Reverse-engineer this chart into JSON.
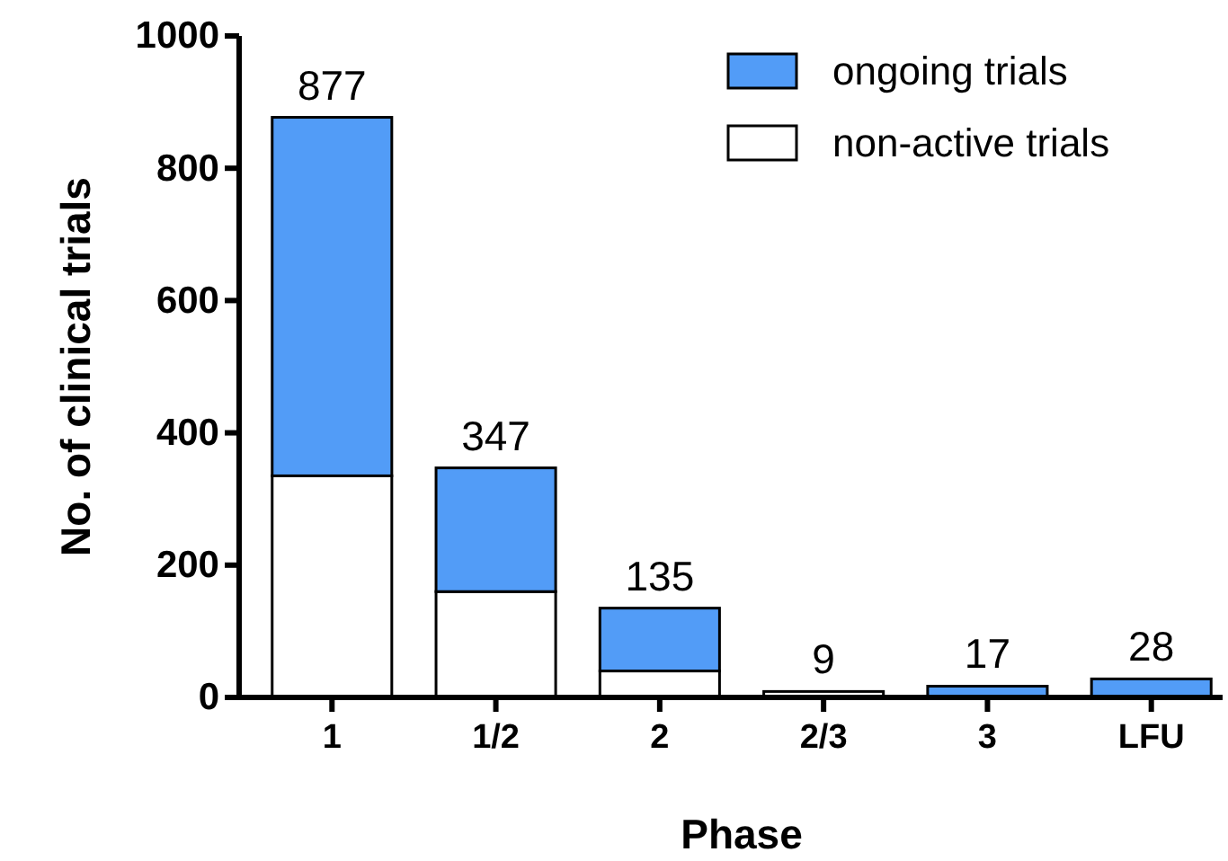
{
  "chart_data": {
    "type": "bar",
    "stacked": true,
    "xlabel": "Phase",
    "ylabel": "No. of clinical trials",
    "categories": [
      "1",
      "1/2",
      "2",
      "2/3",
      "3",
      "LFU"
    ],
    "series": [
      {
        "name": "non-active trials",
        "color": "#ffffff",
        "values": [
          335,
          160,
          40,
          9,
          0,
          0
        ]
      },
      {
        "name": "ongoing trials",
        "color": "#529cf7",
        "values": [
          542,
          187,
          95,
          0,
          17,
          28
        ]
      }
    ],
    "totals": [
      "877",
      "347",
      "135",
      "9",
      "17",
      "28"
    ],
    "ylim": [
      0,
      1000
    ],
    "yticks": [
      0,
      200,
      400,
      600,
      800,
      1000
    ],
    "grid": false,
    "legend": "top right"
  }
}
